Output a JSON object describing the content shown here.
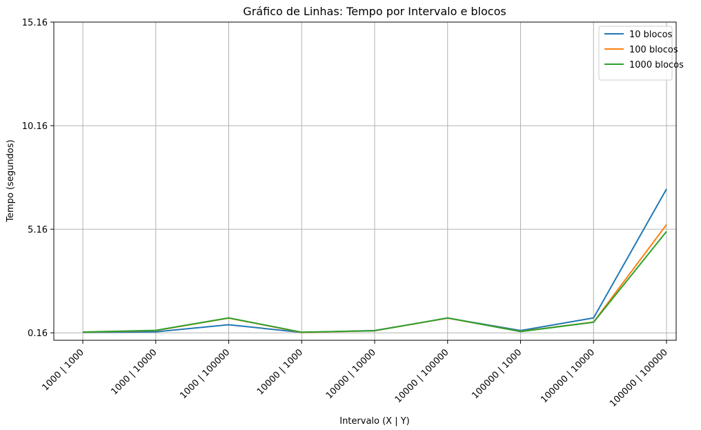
{
  "chart_data": {
    "type": "line",
    "title": "Gráfico de Linhas: Tempo por Intervalo e blocos",
    "xlabel": "Intervalo (X | Y)",
    "ylabel": "Tempo (segundos)",
    "categories": [
      "1000 | 1000",
      "1000 | 10000",
      "1000 | 100000",
      "10000 | 1000",
      "10000 | 10000",
      "10000 | 100000",
      "100000 | 1000",
      "100000 | 10000",
      "100000 | 100000"
    ],
    "yticks": [
      "0.16",
      "5.16",
      "10.16",
      "15.16"
    ],
    "ylim": [
      -0.2,
      15.16
    ],
    "grid": true,
    "legend_position": "top-right",
    "series": [
      {
        "name": "10 blocos",
        "color": "#1f77b4",
        "values": [
          0.18,
          0.21,
          0.55,
          0.18,
          0.27,
          0.87,
          0.27,
          0.88,
          7.1
        ]
      },
      {
        "name": "100 blocos",
        "color": "#ff7f0e",
        "values": [
          0.19,
          0.27,
          0.87,
          0.18,
          0.26,
          0.87,
          0.23,
          0.68,
          5.38
        ]
      },
      {
        "name": "1000 blocos",
        "color": "#2ca02c",
        "values": [
          0.2,
          0.28,
          0.88,
          0.19,
          0.26,
          0.88,
          0.22,
          0.67,
          5.05
        ]
      }
    ]
  }
}
